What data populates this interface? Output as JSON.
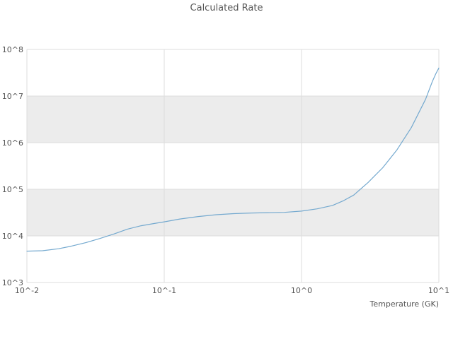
{
  "chart_data": {
    "type": "line",
    "title": "Calculated Rate",
    "xlabel": "Temperature (GK)",
    "ylabel": "",
    "x_scale": "log",
    "y_scale": "log",
    "xlim": [
      0.01,
      10
    ],
    "ylim": [
      1000,
      100000000
    ],
    "grid": true,
    "x_ticks": {
      "values": [
        0.01,
        0.1,
        1,
        10
      ],
      "labels": [
        "10^-2",
        "10^-1",
        "10^0",
        "10^1"
      ]
    },
    "y_ticks": {
      "values": [
        1000,
        10000,
        100000,
        1000000,
        10000000,
        100000000
      ],
      "labels": [
        "10^3",
        "10^4",
        "10^5",
        "10^6",
        "10^7",
        "10^8"
      ]
    },
    "bands": {
      "color": "#ececec",
      "ranges": [
        [
          10000,
          100000
        ],
        [
          1000000,
          10000000
        ]
      ]
    },
    "colors": {
      "line": "#74a9cf",
      "grid": "#dddddd",
      "text": "#555555"
    },
    "series": [
      {
        "name": "calculated-rate",
        "x": [
          0.01,
          0.013,
          0.017,
          0.021,
          0.027,
          0.034,
          0.043,
          0.054,
          0.068,
          0.085,
          0.1,
          0.13,
          0.177,
          0.24,
          0.32,
          0.43,
          0.57,
          0.75,
          1.0,
          1.3,
          1.68,
          2.0,
          2.4,
          3.05,
          3.9,
          4.95,
          6.3,
          8.0,
          9.0,
          9.5,
          10.0
        ],
        "y": [
          4700,
          4800,
          5300,
          6000,
          7200,
          8800,
          11000,
          14000,
          16500,
          18500,
          20000,
          23000,
          26000,
          28500,
          30000,
          31000,
          31500,
          32000,
          34000,
          38000,
          45000,
          56000,
          75000,
          140000,
          290000,
          700000,
          2100000,
          8500000,
          21000000,
          30000000,
          40000000
        ]
      }
    ]
  }
}
